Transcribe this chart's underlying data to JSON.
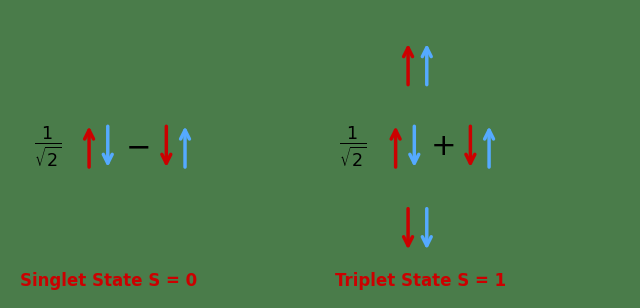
{
  "bg_color": "#4a7c4a",
  "text_color": "#000000",
  "red_color": "#cc0000",
  "blue_color": "#55aaff",
  "singlet_label": "Singlet State S = 0",
  "triplet_label": "Triplet State S = 1",
  "label_color": "#cc0000",
  "figsize": [
    6.4,
    3.08
  ],
  "dpi": 100,
  "arrow_half": 0.38,
  "arrow_lw": 2.5,
  "arrow_ms": 16
}
